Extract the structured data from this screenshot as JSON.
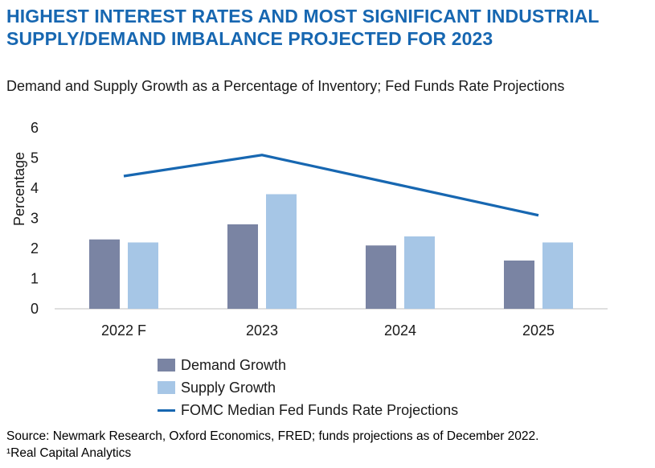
{
  "title": "HIGHEST INTEREST RATES AND MOST SIGNIFICANT INDUSTRIAL SUPPLY/DEMAND IMBALANCE PROJECTED FOR 2023",
  "subtitle": "Demand and Supply Growth as a Percentage of Inventory; Fed Funds Rate Projections",
  "source_line1": "Source: Newmark Research, Oxford Economics, FRED;  funds projections as of December 2022.",
  "source_line2": "¹Real Capital Analytics",
  "chart_data": {
    "type": "bar",
    "categories": [
      "2022 F",
      "2023",
      "2024",
      "2025"
    ],
    "series": [
      {
        "name": "Demand Growth",
        "type": "bar",
        "color": "#7a84a3",
        "values": [
          2.3,
          2.8,
          2.1,
          1.6
        ]
      },
      {
        "name": "Supply Growth",
        "type": "bar",
        "color": "#a6c6e6",
        "values": [
          2.2,
          3.8,
          2.4,
          2.2
        ]
      },
      {
        "name": "FOMC Median Fed Funds Rate Projections",
        "type": "line",
        "color": "#1767b1",
        "values": [
          4.4,
          5.1,
          4.1,
          3.1
        ]
      }
    ],
    "ylabel": "Percentage",
    "ylim": [
      0,
      6
    ],
    "yticks": [
      "0",
      "1",
      "2",
      "3",
      "4",
      "5",
      "6"
    ],
    "grid": false,
    "legend": "bottom"
  }
}
